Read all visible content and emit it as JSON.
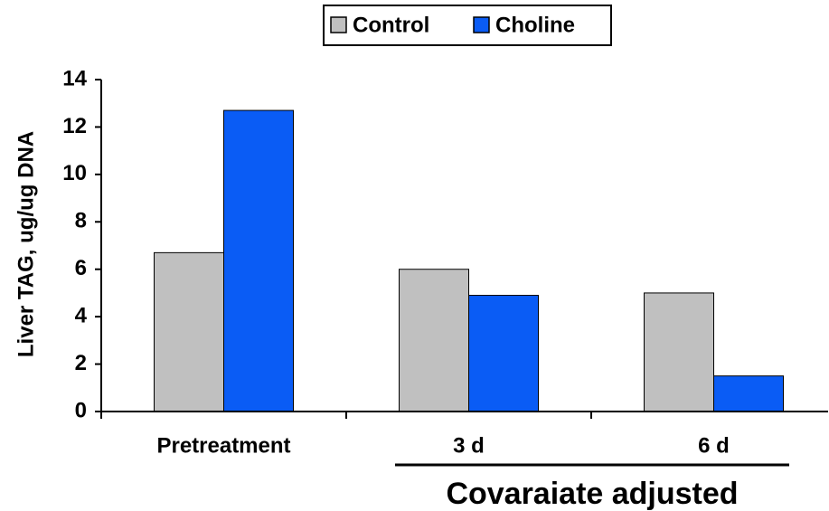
{
  "chart_data": {
    "type": "bar",
    "y_label": "Liver TAG, ug/ug DNA",
    "annotation": "Covaraiate adjusted",
    "categories": [
      "Pretreatment",
      "3 d",
      "6 d"
    ],
    "series": [
      {
        "name": "Control",
        "color": "#c0c0c0",
        "values": [
          6.7,
          6.0,
          5.0
        ]
      },
      {
        "name": "Choline",
        "color": "#0a5cf5",
        "values": [
          12.7,
          4.9,
          1.5
        ]
      }
    ],
    "ylim": [
      0,
      14
    ],
    "yticks": [
      0,
      2,
      4,
      6,
      8,
      10,
      12,
      14
    ],
    "grid": false,
    "legend": "top"
  }
}
